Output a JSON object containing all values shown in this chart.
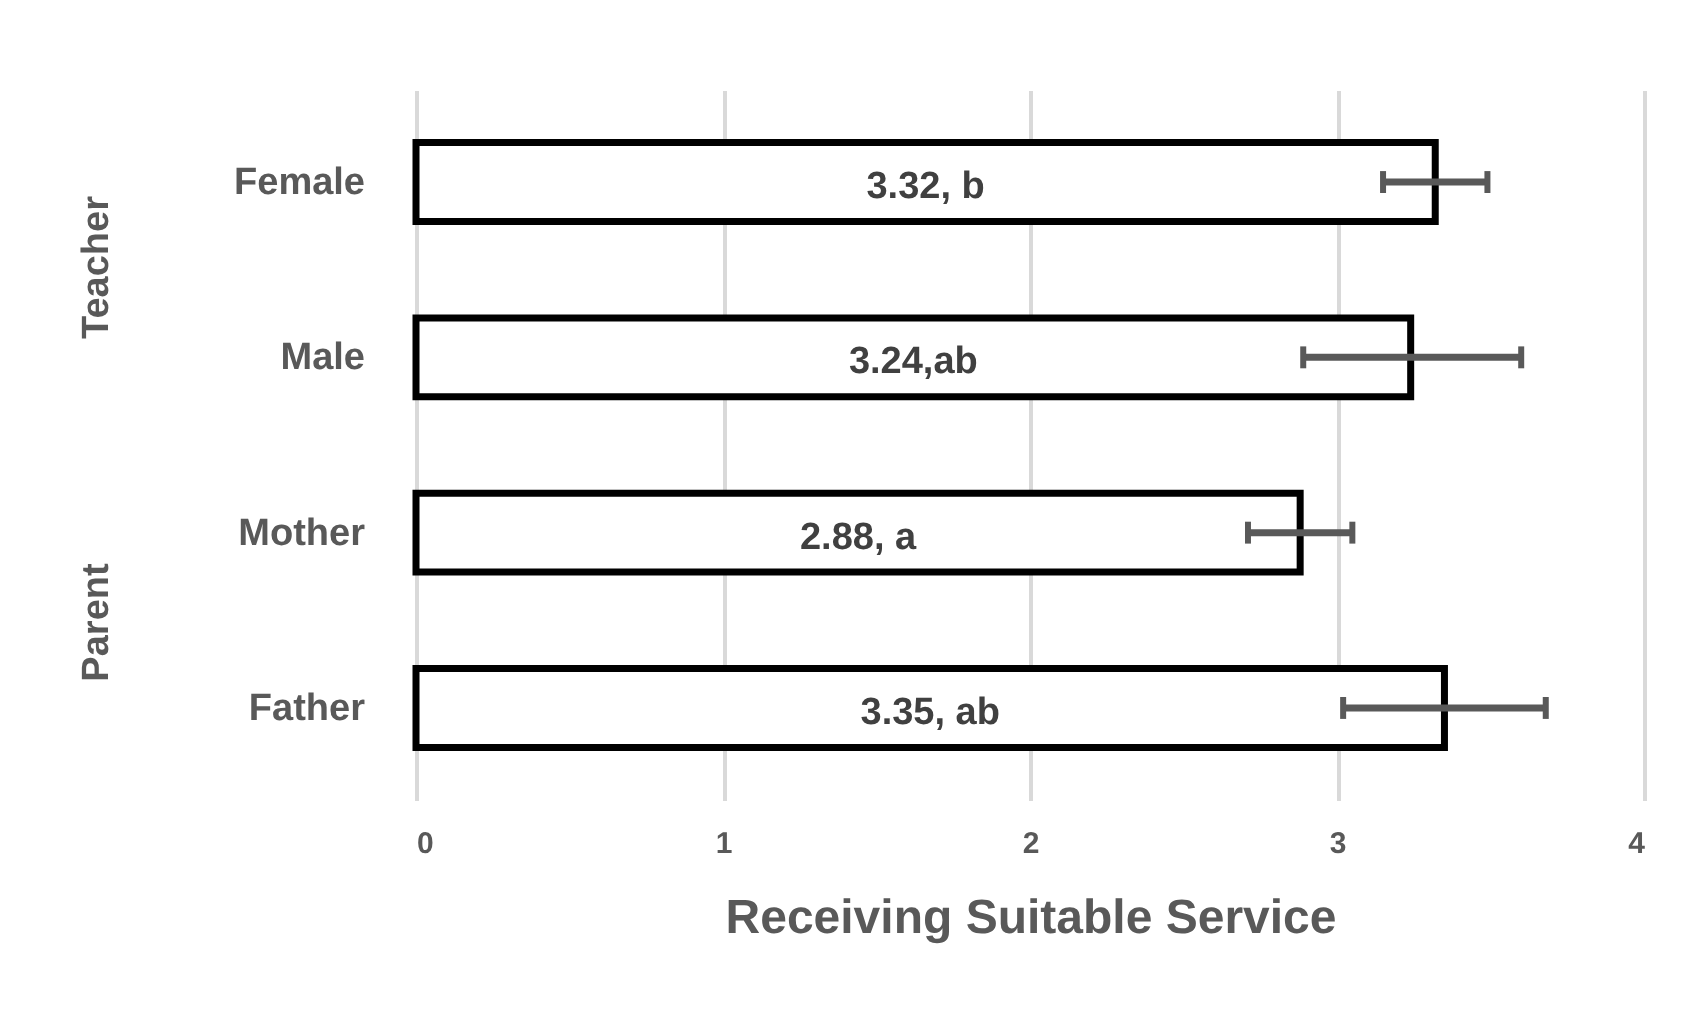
{
  "chart_data": {
    "type": "bar",
    "orientation": "horizontal",
    "xlabel": "Receiving Suitable Service",
    "categories": [
      "Female",
      "Male",
      "Mother",
      "Father"
    ],
    "values": [
      3.32,
      3.24,
      2.88,
      3.35
    ],
    "value_labels": [
      "3.32, b",
      "3.24,ab",
      "2.88, a",
      "3.35, ab"
    ],
    "errors": [
      [
        3.15,
        3.49
      ],
      [
        2.89,
        3.6
      ],
      [
        2.71,
        3.05
      ],
      [
        3.02,
        3.68
      ]
    ],
    "color": "#ffffff",
    "xlim": [
      0,
      4
    ],
    "xticks": [
      0,
      1,
      2,
      3,
      4
    ],
    "grid": "x",
    "annotations": [
      "Teacher",
      "Parent"
    ]
  }
}
